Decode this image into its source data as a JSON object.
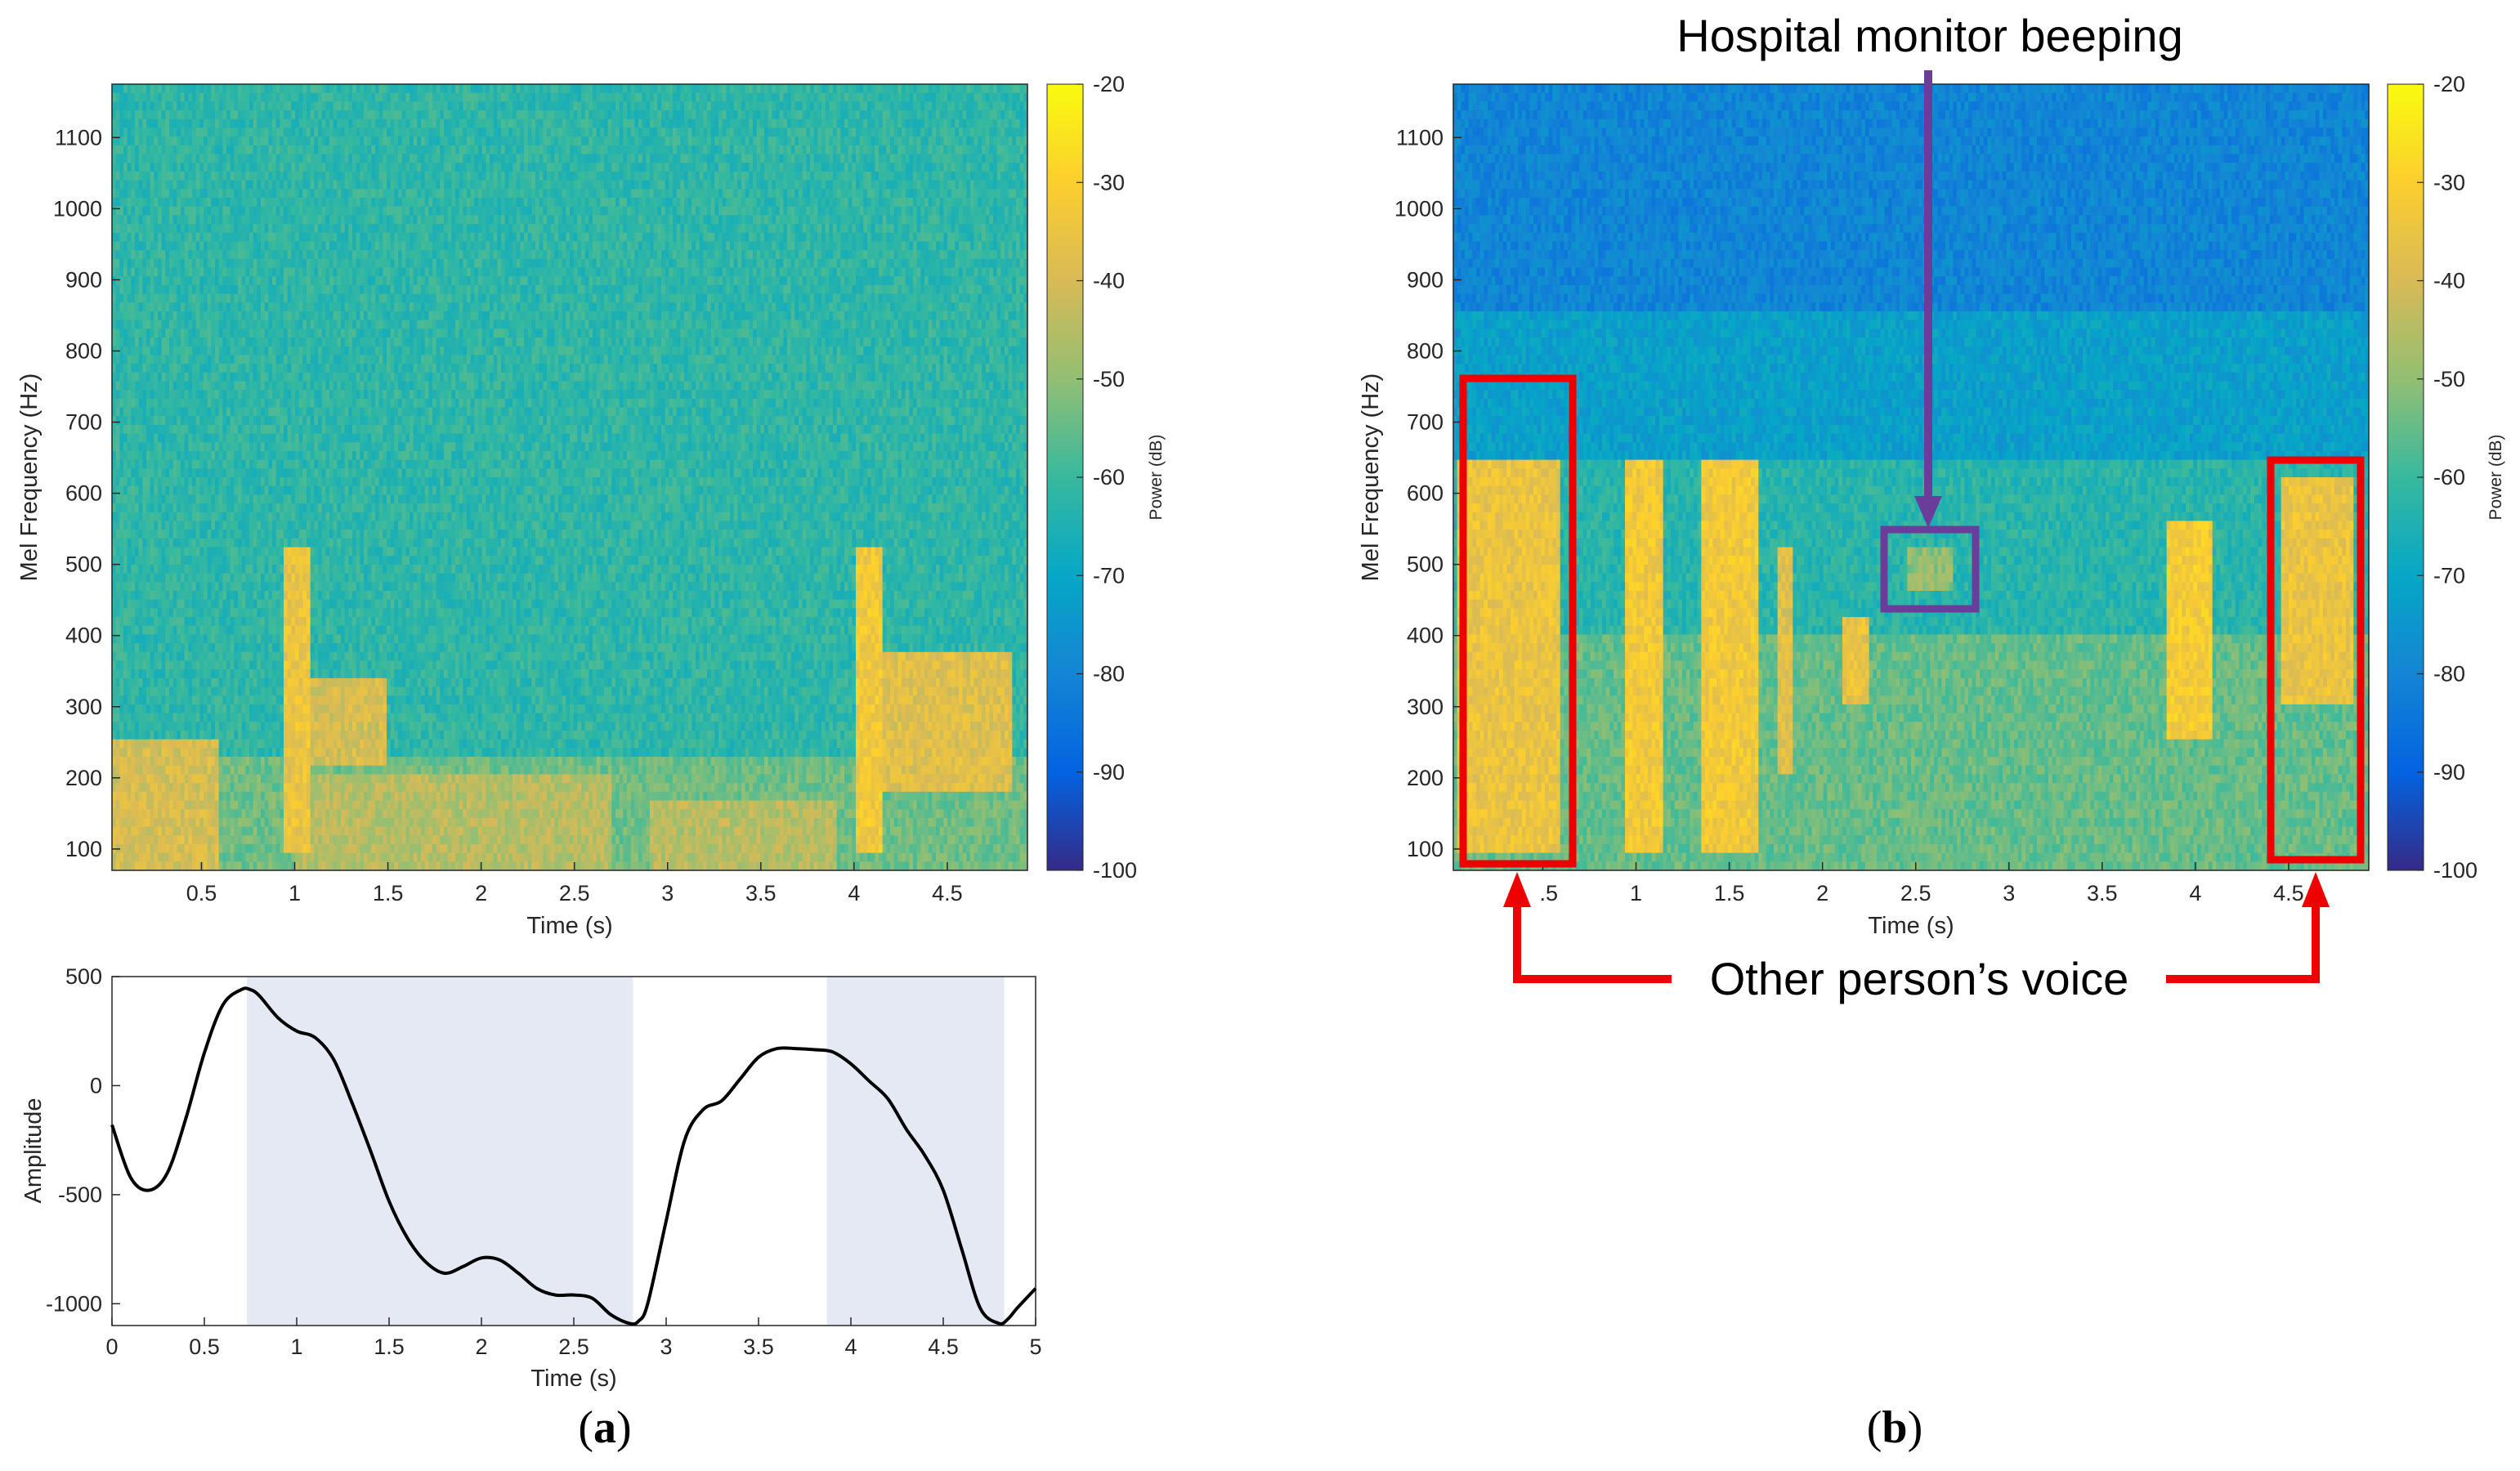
{
  "chart_data": [
    {
      "type": "heatmap",
      "panel": "a-top",
      "title": "",
      "xlabel": "Time (s)",
      "ylabel": "Mel Frequency (Hz)",
      "xlim": [
        0.02,
        4.93
      ],
      "ylim": [
        70,
        1175
      ],
      "xticks": [
        "0.5",
        "1",
        "1.5",
        "2",
        "2.5",
        "3",
        "3.5",
        "4",
        "4.5"
      ],
      "yticks": [
        "100",
        "200",
        "300",
        "400",
        "500",
        "600",
        "700",
        "800",
        "900",
        "1000",
        "1100"
      ],
      "colorbar": {
        "label": "Power (dB)",
        "range": [
          -100,
          -20
        ],
        "ticks": [
          "-20",
          "-30",
          "-40",
          "-50",
          "-60",
          "-70",
          "-80",
          "-90",
          "-100"
        ]
      },
      "energy_regions": [
        {
          "t": [
            0.02,
            0.6
          ],
          "f": [
            70,
            260
          ],
          "db": -40
        },
        {
          "t": [
            0.95,
            1.08
          ],
          "f": [
            100,
            520
          ],
          "db": -35
        },
        {
          "t": [
            1.05,
            1.5
          ],
          "f": [
            220,
            340
          ],
          "db": -40
        },
        {
          "t": [
            1.0,
            2.7
          ],
          "f": [
            70,
            200
          ],
          "db": -45
        },
        {
          "t": [
            2.9,
            3.9
          ],
          "f": [
            70,
            170
          ],
          "db": -45
        },
        {
          "t": [
            4.0,
            4.15
          ],
          "f": [
            100,
            520
          ],
          "db": -33
        },
        {
          "t": [
            4.05,
            4.85
          ],
          "f": [
            180,
            380
          ],
          "db": -38
        }
      ]
    },
    {
      "type": "line",
      "panel": "a-bottom",
      "xlabel": "Time (s)",
      "ylabel": "Amplitude",
      "xlim": [
        0,
        5
      ],
      "ylim": [
        -1100,
        500
      ],
      "xticks": [
        "0",
        "0.5",
        "1",
        "1.5",
        "2",
        "2.5",
        "3",
        "3.5",
        "4",
        "4.5",
        "5"
      ],
      "yticks": [
        "500",
        "0",
        "-500",
        "-1000"
      ],
      "shaded_intervals": [
        [
          0.73,
          2.82
        ],
        [
          3.87,
          4.83
        ]
      ],
      "series": [
        {
          "name": "amplitude",
          "x": [
            0,
            0.1,
            0.2,
            0.3,
            0.4,
            0.5,
            0.6,
            0.7,
            0.75,
            0.8,
            0.9,
            1.0,
            1.1,
            1.2,
            1.3,
            1.4,
            1.5,
            1.6,
            1.7,
            1.8,
            1.9,
            2.0,
            2.1,
            2.2,
            2.3,
            2.4,
            2.5,
            2.6,
            2.7,
            2.8,
            2.85,
            2.9,
            3.0,
            3.1,
            3.2,
            3.3,
            3.4,
            3.5,
            3.6,
            3.7,
            3.8,
            3.9,
            4.0,
            4.1,
            4.2,
            4.3,
            4.4,
            4.5,
            4.6,
            4.7,
            4.8,
            4.85,
            4.9,
            5.0
          ],
          "y": [
            -180,
            -420,
            -480,
            -400,
            -150,
            150,
            370,
            440,
            440,
            410,
            310,
            250,
            220,
            120,
            -80,
            -300,
            -530,
            -700,
            -810,
            -860,
            -830,
            -790,
            -800,
            -860,
            -930,
            -960,
            -960,
            -975,
            -1050,
            -1090,
            -1080,
            -1000,
            -620,
            -250,
            -110,
            -70,
            30,
            130,
            170,
            170,
            165,
            155,
            100,
            20,
            -60,
            -200,
            -320,
            -480,
            -750,
            -1020,
            -1090,
            -1070,
            -1020,
            -930
          ]
        }
      ]
    },
    {
      "type": "heatmap",
      "panel": "b",
      "xlabel": "Time (s)",
      "ylabel": "Mel Frequency (Hz)",
      "xlim": [
        0.02,
        4.93
      ],
      "ylim": [
        70,
        1175
      ],
      "xticks": [
        "0.5",
        "1",
        "1.5",
        "2",
        "2.5",
        "3",
        "3.5",
        "4",
        "4.5"
      ],
      "xticks_visible": [
        "1",
        "1.5",
        "2",
        "2.5",
        "3",
        "3.5",
        "4",
        "4.5"
      ],
      "first_tick_partial": ".5",
      "yticks": [
        "100",
        "200",
        "300",
        "400",
        "500",
        "600",
        "700",
        "800",
        "900",
        "1000",
        "1100"
      ],
      "colorbar": {
        "label": "Power (dB)",
        "range": [
          -100,
          -20
        ],
        "ticks": [
          "-20",
          "-30",
          "-40",
          "-50",
          "-60",
          "-70",
          "-80",
          "-90",
          "-100"
        ]
      },
      "energy_regions": [
        {
          "t": [
            0.05,
            0.6
          ],
          "f": [
            100,
            650
          ],
          "db": -35
        },
        {
          "t": [
            0.95,
            1.15
          ],
          "f": [
            100,
            650
          ],
          "db": -33
        },
        {
          "t": [
            1.35,
            1.65
          ],
          "f": [
            100,
            650
          ],
          "db": -33
        },
        {
          "t": [
            1.75,
            1.85
          ],
          "f": [
            200,
            520
          ],
          "db": -38
        },
        {
          "t": [
            2.1,
            2.25
          ],
          "f": [
            300,
            420
          ],
          "db": -36
        },
        {
          "t": [
            2.45,
            2.7
          ],
          "f": [
            460,
            530
          ],
          "db": -50
        },
        {
          "t": [
            3.85,
            4.1
          ],
          "f": [
            250,
            560
          ],
          "db": -32
        },
        {
          "t": [
            4.45,
            4.85
          ],
          "f": [
            300,
            620
          ],
          "db": -35
        }
      ],
      "annotations": {
        "top": "Hospital monitor beeping",
        "bottom": "Other person’s voice"
      }
    }
  ],
  "panel_labels": {
    "a": {
      "open": "(",
      "letter": "a",
      "close": ")"
    },
    "b": {
      "open": "(",
      "letter": "b",
      "close": ")"
    }
  },
  "colors": {
    "highlight_red": "#ee0000",
    "highlight_purple": "#6a3d9a",
    "shade": "#e4e9f4",
    "line": "#000000"
  }
}
